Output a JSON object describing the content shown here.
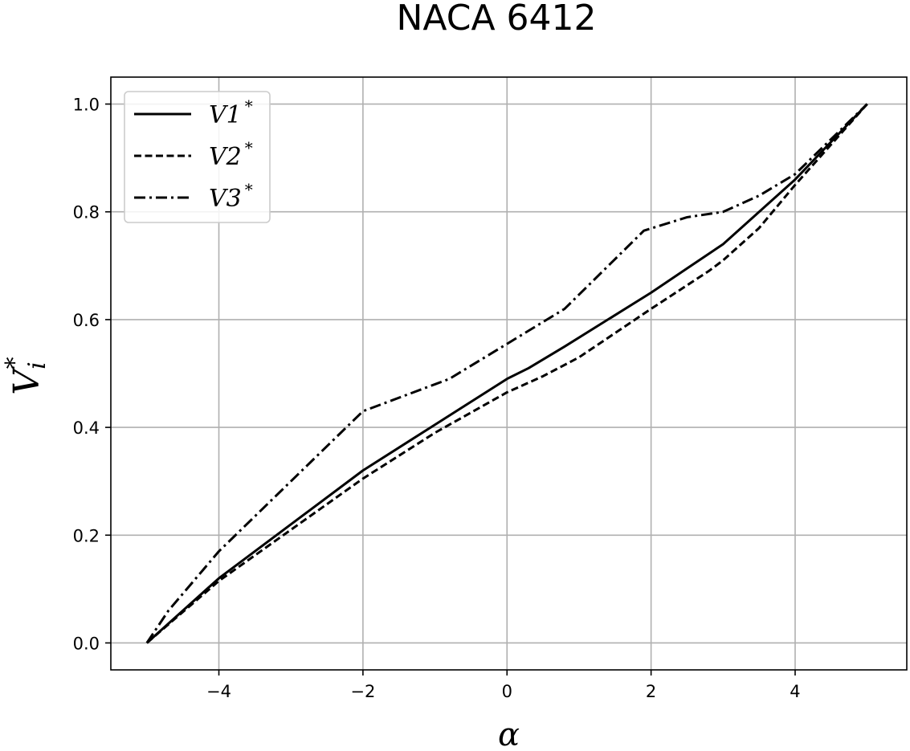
{
  "chart_data": {
    "type": "line",
    "title": "NACA 6412",
    "xlabel": "α",
    "ylabel_main": "V",
    "ylabel_sup": "*",
    "ylabel_sub": "i",
    "xlim": [
      -5.5,
      5.55
    ],
    "ylim": [
      -0.05,
      1.05
    ],
    "xticks": [
      -4,
      -2,
      0,
      2,
      4
    ],
    "xtick_labels": [
      "−4",
      "−2",
      "0",
      "2",
      "4"
    ],
    "yticks": [
      0.0,
      0.2,
      0.4,
      0.6,
      0.8,
      1.0
    ],
    "ytick_labels": [
      "0.0",
      "0.2",
      "0.4",
      "0.6",
      "0.8",
      "1.0"
    ],
    "grid": true,
    "legend_position": "top-left",
    "series": [
      {
        "name": "V1",
        "name_sup": "*",
        "style": "solid",
        "x": [
          -5.0,
          -4.0,
          -3.0,
          -2.0,
          -1.0,
          0.0,
          0.3,
          0.8,
          1.4,
          2.0,
          2.5,
          3.0,
          3.5,
          4.0,
          4.5,
          5.0
        ],
        "y": [
          0.0,
          0.12,
          0.22,
          0.32,
          0.405,
          0.49,
          0.51,
          0.55,
          0.6,
          0.65,
          0.695,
          0.74,
          0.8,
          0.86,
          0.93,
          1.0
        ]
      },
      {
        "name": "V2",
        "name_sup": "*",
        "style": "dashed",
        "x": [
          -5.0,
          -4.0,
          -3.0,
          -2.0,
          -1.0,
          0.0,
          0.5,
          1.0,
          1.5,
          2.0,
          2.8,
          3.0,
          3.5,
          4.0,
          4.5,
          5.0
        ],
        "y": [
          0.0,
          0.115,
          0.21,
          0.305,
          0.39,
          0.465,
          0.495,
          0.53,
          0.575,
          0.62,
          0.69,
          0.71,
          0.77,
          0.85,
          0.925,
          1.0
        ]
      },
      {
        "name": "V3",
        "name_sup": "*",
        "style": "dashdot",
        "x": [
          -5.0,
          -4.7,
          -4.0,
          -3.0,
          -2.0,
          -1.0,
          -0.8,
          0.0,
          0.8,
          1.9,
          2.5,
          3.0,
          3.5,
          4.0,
          4.5,
          5.0
        ],
        "y": [
          0.0,
          0.06,
          0.17,
          0.3,
          0.43,
          0.48,
          0.49,
          0.555,
          0.62,
          0.765,
          0.79,
          0.8,
          0.83,
          0.87,
          0.935,
          1.0
        ]
      }
    ]
  }
}
